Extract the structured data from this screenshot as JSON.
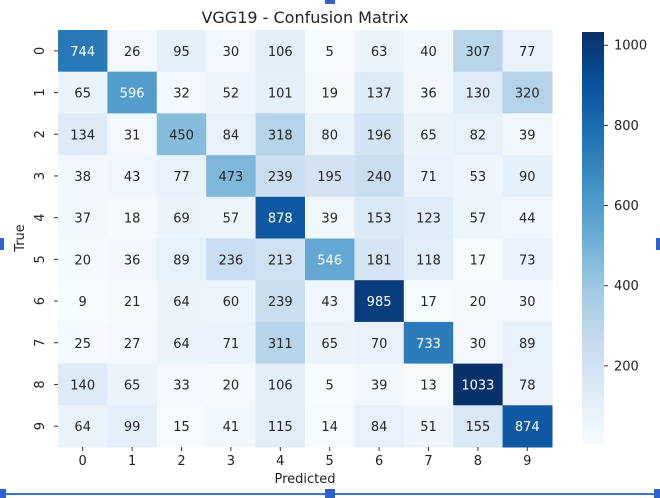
{
  "chart_data": {
    "type": "heatmap",
    "title": "VGG19 - Confusion Matrix",
    "xlabel": "Predicted",
    "ylabel": "True",
    "x_categories": [
      "0",
      "1",
      "2",
      "3",
      "4",
      "5",
      "6",
      "7",
      "8",
      "9"
    ],
    "y_categories": [
      "0",
      "1",
      "2",
      "3",
      "4",
      "5",
      "6",
      "7",
      "8",
      "9"
    ],
    "values": [
      [
        744,
        26,
        95,
        30,
        106,
        5,
        63,
        40,
        307,
        77
      ],
      [
        65,
        596,
        32,
        52,
        101,
        19,
        137,
        36,
        130,
        320
      ],
      [
        134,
        31,
        450,
        84,
        318,
        80,
        196,
        65,
        82,
        39
      ],
      [
        38,
        43,
        77,
        473,
        239,
        195,
        240,
        71,
        53,
        90
      ],
      [
        37,
        18,
        69,
        57,
        878,
        39,
        153,
        123,
        57,
        44
      ],
      [
        20,
        36,
        89,
        236,
        213,
        546,
        181,
        118,
        17,
        73
      ],
      [
        9,
        21,
        64,
        60,
        239,
        43,
        985,
        17,
        20,
        30
      ],
      [
        25,
        27,
        64,
        71,
        311,
        65,
        70,
        733,
        30,
        89
      ],
      [
        140,
        65,
        33,
        20,
        106,
        5,
        39,
        13,
        1033,
        78
      ],
      [
        64,
        99,
        15,
        41,
        115,
        14,
        84,
        51,
        155,
        874
      ]
    ],
    "colorbar": {
      "cmap": "Blues",
      "vmin": 5,
      "vmax": 1033,
      "ticks": [
        200,
        400,
        600,
        800,
        1000
      ]
    },
    "colors": {
      "low": "#f7fbff",
      "high": "#08306b"
    },
    "grid": false,
    "legend": "colorbar-right"
  }
}
